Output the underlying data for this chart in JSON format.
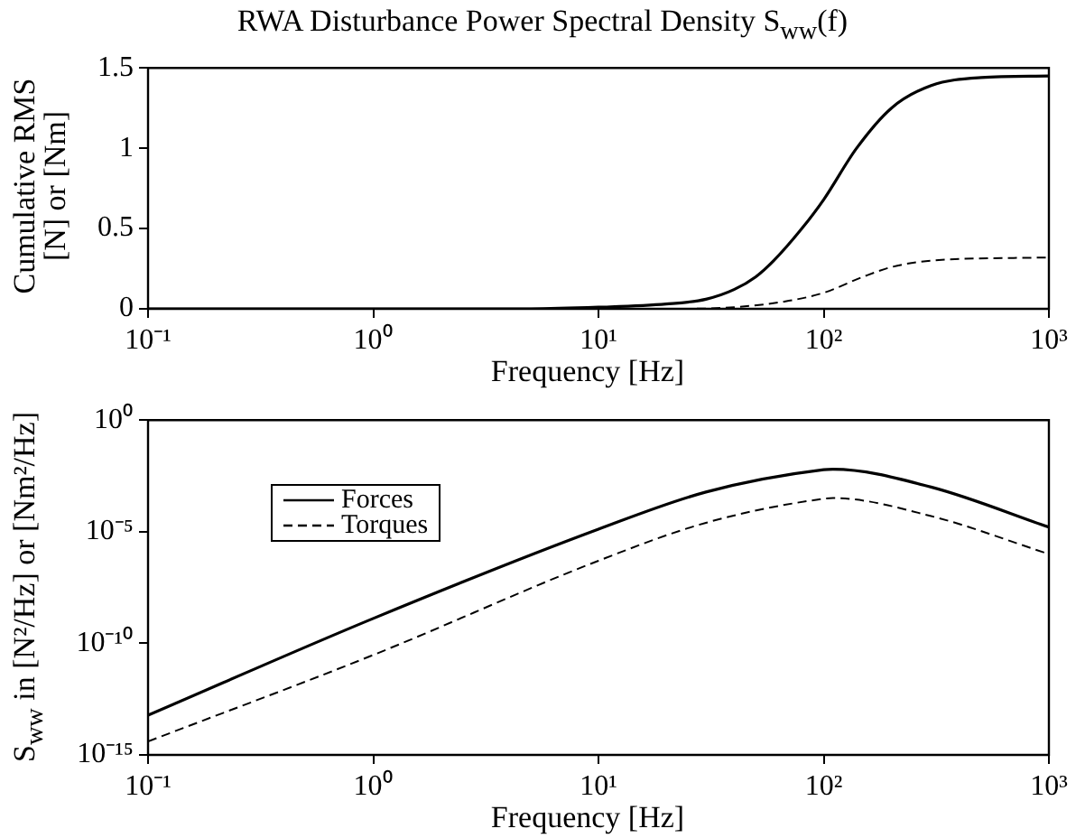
{
  "chart_data": [
    {
      "type": "line",
      "title": "RWA Disturbance Power Spectral Density S$_{ww}$(f)",
      "xlabel": "Frequency [Hz]",
      "ylabel": "Cumulative RMS\n[N] or [Nm]",
      "log": "x",
      "grid": false,
      "legend": false,
      "xlim": [
        0.1,
        1000
      ],
      "xticks": [
        {
          "value": 0.1,
          "label": "10⁻¹"
        },
        {
          "value": 1,
          "label": "10⁰"
        },
        {
          "value": 10,
          "label": "10¹"
        },
        {
          "value": 100,
          "label": "10²"
        },
        {
          "value": 1000,
          "label": "10³"
        }
      ],
      "ylim": [
        0,
        1.5
      ],
      "yticks": [
        0,
        0.5,
        1,
        1.5
      ],
      "series": [
        {
          "color": "#000000",
          "line_style": "solid",
          "x": [
            0.1,
            1,
            5,
            10,
            20,
            30,
            40,
            50,
            60,
            80,
            100,
            140,
            200,
            300,
            500,
            1000
          ],
          "values": [
            0,
            0,
            0,
            0.01,
            0.03,
            0.06,
            0.12,
            0.2,
            0.3,
            0.5,
            0.68,
            1,
            1.25,
            1.39,
            1.44,
            1.45
          ]
        },
        {
          "color": "#000000",
          "line_style": "dashed",
          "x": [
            0.1,
            1,
            10,
            20,
            40,
            70,
            100,
            150,
            200,
            300,
            1000
          ],
          "values": [
            0,
            0,
            0,
            0,
            0.01,
            0.05,
            0.1,
            0.2,
            0.26,
            0.3,
            0.32
          ]
        }
      ]
    },
    {
      "type": "line",
      "xlabel": "Frequency [Hz]",
      "ylabel": "S$_{ww}$ in [N²/Hz] or [Nm²/Hz]",
      "log": "xy",
      "grid": false,
      "legend": "top left",
      "xlim": [
        0.1,
        1000
      ],
      "xticks": [
        {
          "value": 0.1,
          "label": "10⁻¹"
        },
        {
          "value": 1,
          "label": "10⁰"
        },
        {
          "value": 10,
          "label": "10¹"
        },
        {
          "value": 100,
          "label": "10²"
        },
        {
          "value": 1000,
          "label": "10³"
        }
      ],
      "ylim": [
        1e-15,
        1
      ],
      "yticks": [
        {
          "value": 1e-15,
          "label": "10⁻¹⁵"
        },
        {
          "value": 1e-10,
          "label": "10⁻¹⁰"
        },
        {
          "value": 1e-05,
          "label": "10⁻⁵"
        },
        {
          "value": 1,
          "label": "10⁰"
        }
      ],
      "series": [
        {
          "name": "Forces",
          "color": "#000000",
          "line_style": "solid",
          "x": [
            0.1,
            1,
            10,
            30,
            100,
            110,
            300,
            1000
          ],
          "values": [
            6e-14,
            1.3e-09,
            1.3e-05,
            0.0006,
            0.006,
            0.0063,
            0.001,
            1.6e-05
          ]
        },
        {
          "name": "Torques",
          "color": "#000000",
          "line_style": "dashed",
          "x": [
            0.1,
            1,
            10,
            30,
            100,
            110,
            300,
            1000
          ],
          "values": [
            4e-15,
            3e-11,
            5e-07,
            2.5e-05,
            0.0003,
            0.00032,
            5e-05,
            1e-06
          ]
        }
      ]
    }
  ]
}
